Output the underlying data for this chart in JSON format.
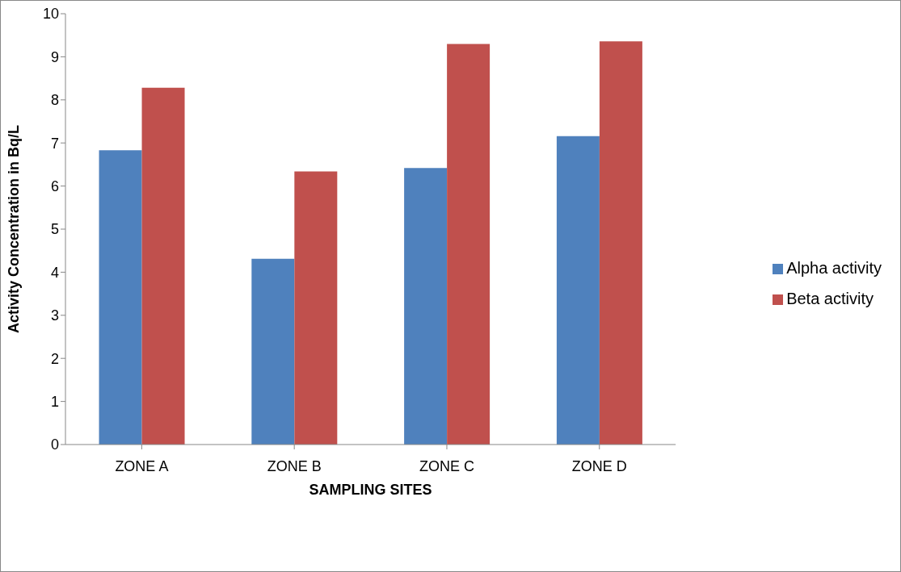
{
  "chart_data": {
    "type": "bar",
    "xlabel": "SAMPLING SITES",
    "ylabel": "Activity Concentration in Bq/L",
    "categories": [
      "ZONE A",
      "ZONE B",
      "ZONE C",
      "ZONE D"
    ],
    "series": [
      {
        "name": "Alpha activity",
        "color": "#4f81bd",
        "values": [
          6.83,
          4.31,
          6.42,
          7.16
        ]
      },
      {
        "name": "Beta activity",
        "color": "#c0504d",
        "values": [
          8.28,
          6.34,
          9.3,
          9.36
        ]
      }
    ],
    "ylim": [
      0,
      10
    ],
    "yticks": [
      0,
      1,
      2,
      3,
      4,
      5,
      6,
      7,
      8,
      9,
      10
    ],
    "grid": false,
    "legend": "right"
  }
}
